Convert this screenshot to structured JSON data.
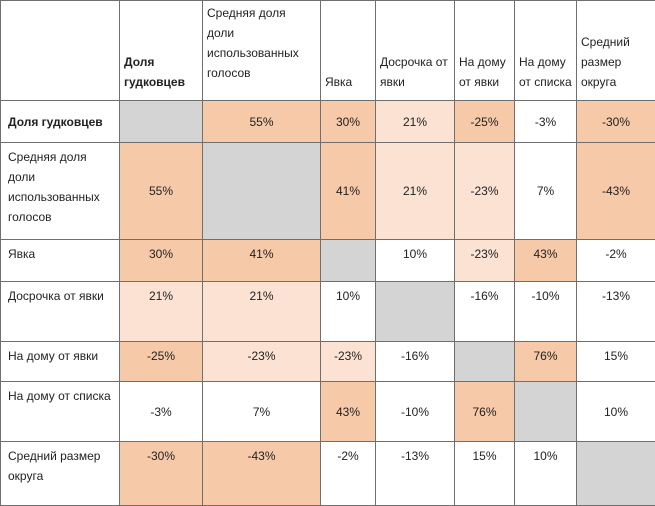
{
  "colors": {
    "strong": "#f6c9a9",
    "light": "#fbe2d2",
    "none": "#ffffff",
    "diagonal": "#d4d4d4"
  },
  "columns": [
    "",
    "Доля гудковцев",
    "Средняя доля доли использованных голосов",
    "Явка",
    "Досрочка от явки",
    "На дому от явки",
    "На дому от списка",
    "Средний размер округа"
  ],
  "rows": [
    {
      "label": "Доля гудковцев",
      "cells": [
        "",
        "55%",
        "30%",
        "21%",
        "-25%",
        "-3%",
        "-30%"
      ]
    },
    {
      "label": "Средняя доля доли использованных голосов",
      "cells": [
        "55%",
        "",
        "41%",
        "21%",
        "-23%",
        "7%",
        "-43%"
      ]
    },
    {
      "label": "Явка",
      "cells": [
        "30%",
        "41%",
        "",
        "10%",
        "-23%",
        "43%",
        "-2%"
      ]
    },
    {
      "label": "Досрочка от явки",
      "cells": [
        "21%",
        "21%",
        "10%",
        "",
        "-16%",
        "-10%",
        "-13%"
      ]
    },
    {
      "label": "На дому от явки",
      "cells": [
        "-25%",
        "-23%",
        "-23%",
        "-16%",
        "",
        "76%",
        "15%"
      ]
    },
    {
      "label": "На дому от списка",
      "cells": [
        "-3%",
        "7%",
        "43%",
        "-10%",
        "76%",
        "",
        "10%"
      ]
    },
    {
      "label": "Средний размер округа",
      "cells": [
        "-30%",
        "-43%",
        "-2%",
        "-13%",
        "15%",
        "10%",
        ""
      ]
    }
  ]
}
